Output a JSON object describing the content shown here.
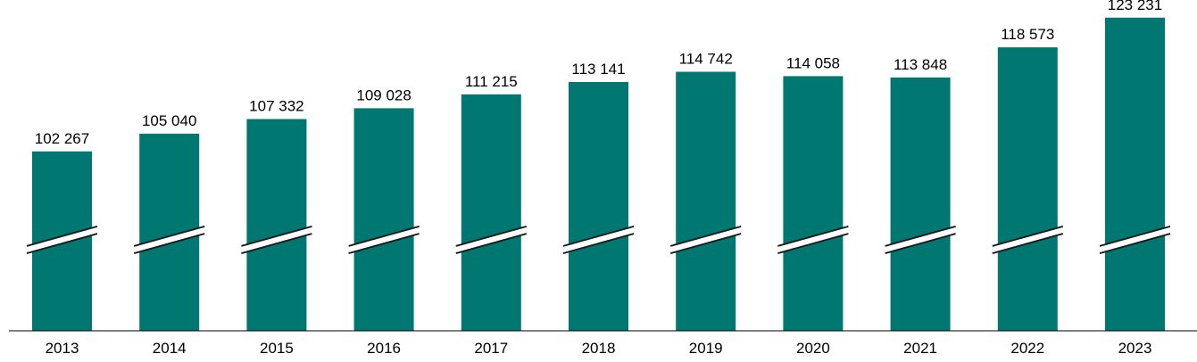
{
  "chart_data": {
    "type": "bar",
    "categories": [
      "2013",
      "2014",
      "2015",
      "2016",
      "2017",
      "2018",
      "2019",
      "2020",
      "2021",
      "2022",
      "2023"
    ],
    "values": [
      102267,
      105040,
      107332,
      109028,
      111215,
      113141,
      114742,
      114058,
      113848,
      118573,
      123231
    ],
    "value_labels": [
      "102 267",
      "105 040",
      "107 332",
      "109 028",
      "111 215",
      "113 141",
      "114 742",
      "114 058",
      "113 848",
      "118 573",
      "123 231"
    ],
    "title": "",
    "xlabel": "",
    "ylabel": "",
    "axis_break": true,
    "grid": false,
    "legend": false,
    "colors": {
      "bar": "#007770",
      "axis": "#000000",
      "label": "#000000",
      "break": "#ffffff"
    }
  }
}
